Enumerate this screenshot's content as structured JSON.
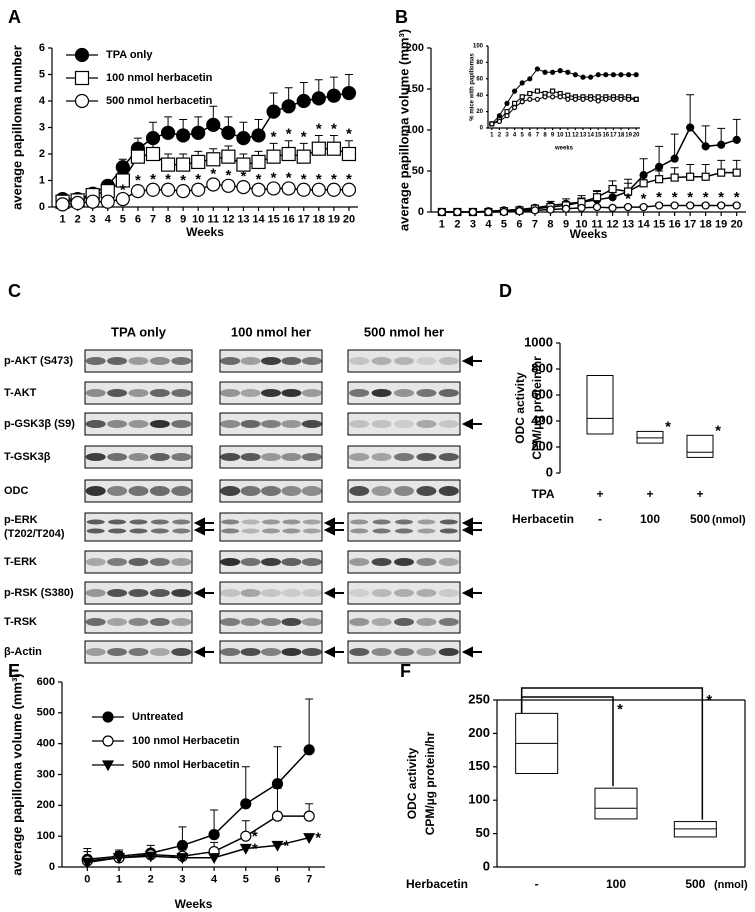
{
  "chart_data": [
    {
      "panel": "A",
      "type": "line",
      "ylabel": "average papilloma number",
      "xlabel": "Weeks",
      "x": [
        1,
        2,
        3,
        4,
        5,
        6,
        7,
        8,
        9,
        10,
        11,
        12,
        13,
        14,
        15,
        16,
        17,
        18,
        19,
        20
      ],
      "xlim": [
        0.3,
        20.6
      ],
      "xticks": [
        1,
        2,
        3,
        4,
        5,
        6,
        7,
        8,
        9,
        10,
        11,
        12,
        13,
        14,
        15,
        16,
        17,
        18,
        19,
        20
      ],
      "ylim": [
        0,
        6
      ],
      "yticks": [
        0,
        1,
        2,
        3,
        4,
        5,
        6
      ],
      "legend": "upper left",
      "star": "*",
      "series": [
        {
          "name": "TPA only",
          "marker": "circle",
          "color": "#000",
          "fill": "#000",
          "values": [
            0.3,
            0.3,
            0.5,
            0.8,
            1.5,
            2.2,
            2.6,
            2.8,
            2.7,
            2.8,
            3.1,
            2.8,
            2.6,
            2.7,
            3.6,
            3.8,
            4.0,
            4.1,
            4.2,
            4.3
          ],
          "errors": [
            0.1,
            0.1,
            0.1,
            0.2,
            0.3,
            0.4,
            0.6,
            0.6,
            0.6,
            0.6,
            0.7,
            0.6,
            0.6,
            0.6,
            0.7,
            0.7,
            0.7,
            0.7,
            0.7,
            0.7
          ],
          "stars": []
        },
        {
          "name": "100 nmol herbacetin",
          "marker": "square",
          "color": "#000",
          "fill": "#fff",
          "values": [
            0.2,
            0.25,
            0.45,
            0.6,
            1.0,
            1.9,
            2.0,
            1.6,
            1.6,
            1.7,
            1.8,
            1.9,
            1.6,
            1.7,
            1.9,
            2.0,
            1.9,
            2.2,
            2.2,
            2.0
          ],
          "errors": [
            0.05,
            0.05,
            0.1,
            0.15,
            0.3,
            0.5,
            0.4,
            0.4,
            0.4,
            0.4,
            0.4,
            0.4,
            0.4,
            0.4,
            0.5,
            0.5,
            0.5,
            0.5,
            0.5,
            0.5
          ],
          "stars": [
            15,
            16,
            17,
            18,
            19,
            20
          ]
        },
        {
          "name": "500 nmol herbacetin",
          "marker": "circle",
          "color": "#000",
          "fill": "#fff",
          "values": [
            0.1,
            0.15,
            0.2,
            0.2,
            0.3,
            0.6,
            0.65,
            0.65,
            0.6,
            0.65,
            0.85,
            0.8,
            0.75,
            0.65,
            0.7,
            0.7,
            0.65,
            0.65,
            0.65,
            0.65
          ],
          "errors": [
            0.05,
            0.05,
            0.05,
            0.05,
            0.1,
            0.15,
            0.15,
            0.15,
            0.15,
            0.15,
            0.15,
            0.15,
            0.15,
            0.15,
            0.15,
            0.15,
            0.15,
            0.15,
            0.15,
            0.15
          ],
          "stars": [
            5,
            6,
            7,
            8,
            9,
            10,
            11,
            12,
            13,
            14,
            15,
            16,
            17,
            18,
            19,
            20
          ]
        }
      ]
    },
    {
      "panel": "B",
      "type": "line",
      "ylabel": "average papilloma volume (mm³)",
      "xlabel": "Weeks",
      "x": [
        1,
        2,
        3,
        4,
        5,
        6,
        7,
        8,
        9,
        10,
        11,
        12,
        13,
        14,
        15,
        16,
        17,
        18,
        19,
        20
      ],
      "xlim": [
        0.3,
        20.6
      ],
      "xticks": [
        1,
        2,
        3,
        4,
        5,
        6,
        7,
        8,
        9,
        10,
        11,
        12,
        13,
        14,
        15,
        16,
        17,
        18,
        19,
        20
      ],
      "ylim": [
        0,
        200
      ],
      "yticks": [
        0,
        50,
        100,
        150,
        200
      ],
      "star": "*",
      "series": [
        {
          "marker": "circle",
          "color": "#000",
          "fill": "#000",
          "values": [
            0,
            0,
            0,
            1,
            2,
            3,
            5,
            8,
            10,
            12,
            15,
            18,
            25,
            45,
            55,
            65,
            103,
            80,
            82,
            88
          ],
          "errors": [
            0,
            0,
            0,
            0.5,
            1,
            2,
            3,
            5,
            6,
            8,
            10,
            12,
            15,
            20,
            25,
            30,
            40,
            25,
            20,
            25
          ],
          "stars": []
        },
        {
          "marker": "square",
          "color": "#000",
          "fill": "#fff",
          "values": [
            0,
            0,
            0,
            0,
            1,
            2,
            4,
            6,
            8,
            12,
            18,
            28,
            25,
            35,
            40,
            42,
            43,
            43,
            48,
            48
          ],
          "errors": [
            0,
            0,
            0,
            0,
            0.5,
            1,
            2,
            3,
            4,
            5,
            8,
            10,
            10,
            10,
            10,
            12,
            15,
            15,
            15,
            15
          ],
          "stars": []
        },
        {
          "marker": "circle",
          "color": "#000",
          "fill": "#fff",
          "values": [
            0,
            0,
            0,
            0,
            0,
            1,
            2,
            3,
            4,
            5,
            6,
            5,
            6,
            6,
            8,
            8,
            8,
            8,
            8,
            8
          ],
          "errors": [
            0,
            0,
            0,
            0,
            0,
            1,
            1,
            1,
            1,
            2,
            2,
            2,
            2,
            2,
            2,
            2,
            2,
            2,
            2,
            2
          ],
          "stars": [
            12,
            13,
            14,
            15,
            16,
            17,
            18,
            19,
            20
          ]
        }
      ]
    },
    {
      "type": "line",
      "ylabel": "% mice with papillomas",
      "xlabel": "weeks",
      "x": [
        1,
        2,
        3,
        4,
        5,
        6,
        7,
        8,
        9,
        10,
        11,
        12,
        13,
        14,
        15,
        16,
        17,
        18,
        19,
        20
      ],
      "xlim": [
        0.5,
        20.5
      ],
      "xticks": [
        1,
        2,
        3,
        4,
        5,
        6,
        7,
        8,
        9,
        10,
        11,
        12,
        13,
        14,
        15,
        16,
        17,
        18,
        19,
        20
      ],
      "ylim": [
        0,
        100
      ],
      "yticks": [
        0,
        20,
        40,
        60,
        80,
        100
      ],
      "series": [
        {
          "marker": "circle",
          "color": "#000",
          "fill": "#000",
          "values": [
            5,
            15,
            30,
            45,
            55,
            60,
            72,
            68,
            68,
            70,
            68,
            65,
            62,
            62,
            65,
            65,
            65,
            65,
            65,
            65
          ]
        },
        {
          "marker": "square",
          "color": "#000",
          "fill": "#fff",
          "values": [
            5,
            10,
            20,
            30,
            38,
            42,
            45,
            42,
            45,
            42,
            40,
            38,
            38,
            38,
            38,
            38,
            38,
            38,
            38,
            35
          ]
        },
        {
          "marker": "circle",
          "color": "#000",
          "fill": "#fff",
          "values": [
            5,
            8,
            15,
            25,
            32,
            35,
            35,
            38,
            38,
            38,
            35,
            35,
            35,
            35,
            33,
            35,
            35,
            35,
            35,
            35
          ]
        }
      ]
    },
    {
      "panel": "D",
      "type": "box",
      "ylabel": [
        "ODC activity",
        "CPM/µg protein/hr"
      ],
      "ylim": [
        0,
        1000
      ],
      "yticks": [
        0,
        200,
        400,
        600,
        800,
        1000
      ],
      "low": [
        300,
        230,
        120
      ],
      "median": [
        420,
        270,
        160
      ],
      "high": [
        750,
        320,
        290
      ],
      "star": "*",
      "stars": [
        1,
        2
      ],
      "xrows": [
        {
          "label": "TPA",
          "values": [
            "+",
            "+",
            "+"
          ]
        },
        {
          "label": "Herbacetin",
          "values": [
            "-",
            "100",
            "500"
          ],
          "unit": "(nmol)"
        }
      ]
    },
    {
      "panel": "E",
      "type": "line",
      "ylabel": "average papilloma volume (mm³)",
      "xlabel": "Weeks",
      "x": [
        0,
        1,
        2,
        3,
        4,
        5,
        6,
        7
      ],
      "xlim": [
        -0.8,
        7.5
      ],
      "xticks": [
        0,
        1,
        2,
        3,
        4,
        5,
        6,
        7
      ],
      "ylim": [
        0,
        600
      ],
      "yticks": [
        0,
        100,
        200,
        300,
        400,
        500,
        600
      ],
      "legend": "upper left",
      "star": "*",
      "series": [
        {
          "name": "Untreated",
          "marker": "circle",
          "color": "#000",
          "fill": "#000",
          "values": [
            25,
            35,
            45,
            70,
            105,
            205,
            270,
            380
          ],
          "errors": [
            35,
            20,
            25,
            60,
            80,
            120,
            120,
            165
          ],
          "stars": []
        },
        {
          "name": "100 nmol Herbacetin",
          "marker": "circle",
          "color": "#000",
          "fill": "#fff",
          "values": [
            20,
            30,
            40,
            35,
            50,
            100,
            165,
            165
          ],
          "errors": [
            30,
            20,
            15,
            20,
            30,
            50,
            90,
            40
          ],
          "stars": [
            5
          ]
        },
        {
          "name": "500 nmol Herbacetin",
          "marker": "triangle",
          "color": "#000",
          "fill": "#000",
          "values": [
            15,
            30,
            35,
            30,
            30,
            60,
            70,
            95
          ],
          "errors": [
            5,
            10,
            10,
            10,
            10,
            10,
            10,
            10
          ],
          "stars": [
            5,
            6,
            7
          ]
        }
      ]
    },
    {
      "panel": "F",
      "type": "box",
      "ylabel": [
        "ODC activity",
        "CPM/µg protein/hr"
      ],
      "ylim": [
        0,
        250
      ],
      "yticks": [
        0,
        50,
        100,
        150,
        200,
        250
      ],
      "low": [
        140,
        72,
        45
      ],
      "median": [
        185,
        88,
        57
      ],
      "high": [
        230,
        118,
        68
      ],
      "star": "*",
      "stars": [
        1,
        2
      ],
      "xrows": [
        {
          "label": "Herbacetin",
          "values": [
            "-",
            "100",
            "500"
          ],
          "unit": "(nmol)"
        }
      ]
    }
  ],
  "blot": {
    "panel": "C",
    "groups": [
      "TPA only",
      "100 nmol her",
      "500 nmol her"
    ],
    "rows": [
      "p-AKT (S473)",
      "T-AKT",
      "p-GSK3β (S9)",
      "T-GSK3β",
      "ODC",
      [
        "p-ERK",
        "(T202/T204)"
      ],
      "T-ERK",
      "p-RSK (S380)",
      "T-RSK",
      "β-Actin"
    ]
  }
}
